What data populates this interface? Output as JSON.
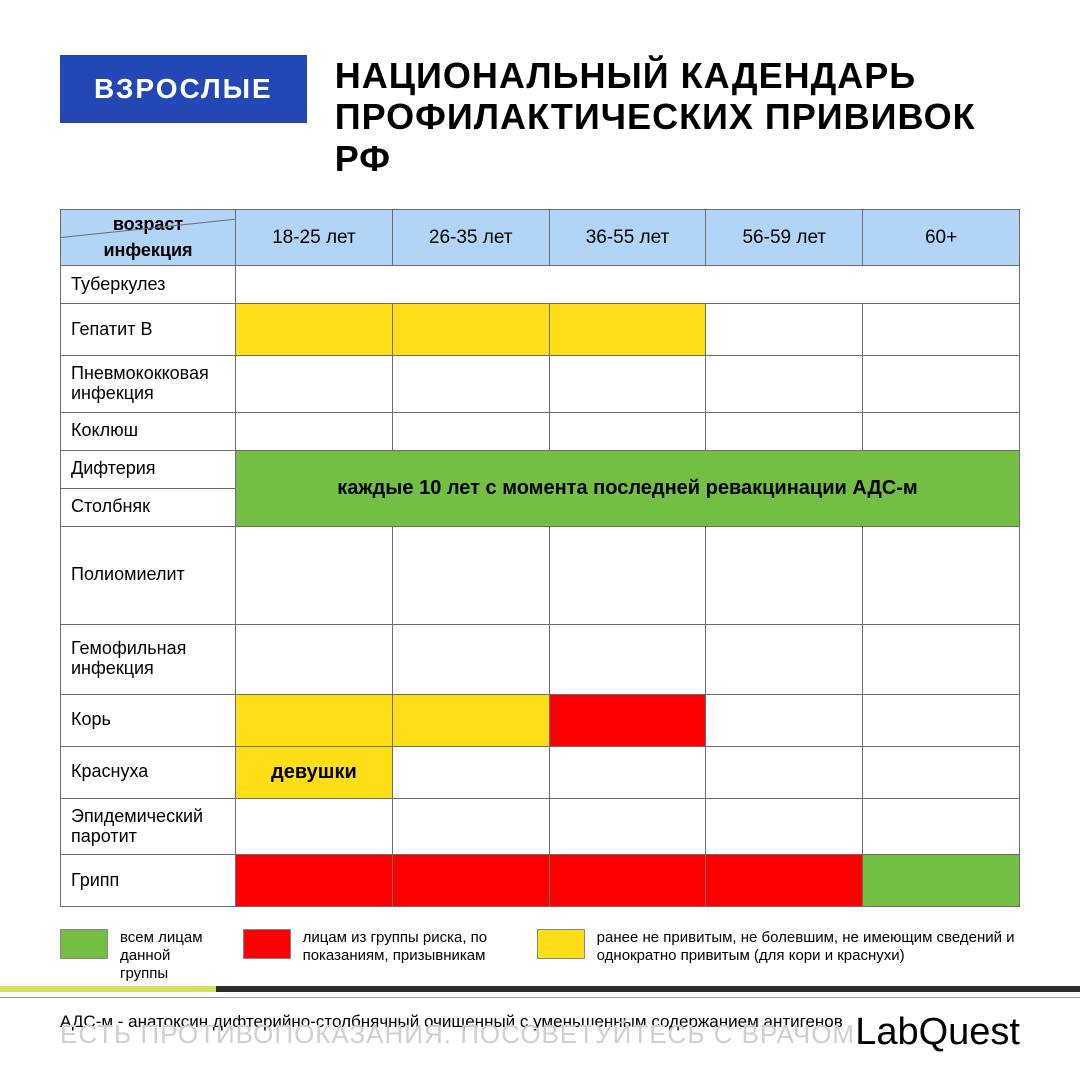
{
  "colors": {
    "badge_bg": "#2348b5",
    "header_bg": "#b1d4f7",
    "green": "#72bf44",
    "red": "#ff0000",
    "yellow": "#ffde17",
    "accent_dark": "#2c2c2c",
    "accent_lime": "#d5e05b"
  },
  "badge": "ВЗРОСЛЫЕ",
  "title_line1": "НАЦИОНАЛЬНЫЙ КАДЕНДАРЬ",
  "title_line2": "ПРОФИЛАКТИЧЕСКИХ ПРИВИВОК РФ",
  "corner_top": "возраст",
  "corner_bot": "инфекция",
  "ages": [
    "18-25 лет",
    "26-35 лет",
    "36-55 лет",
    "56-59 лет",
    "60+"
  ],
  "rows": [
    {
      "label": "Туберкулез",
      "h": "h-short",
      "cells": [
        {
          "span": 5,
          "color": null
        }
      ]
    },
    {
      "label": "Гепатит B",
      "h": "h-med",
      "cells": [
        {
          "span": 1,
          "color": "yellow"
        },
        {
          "span": 1,
          "color": "yellow"
        },
        {
          "span": 1,
          "color": "yellow"
        },
        {
          "span": 1,
          "color": null
        },
        {
          "span": 1,
          "color": null
        }
      ]
    },
    {
      "label": "Пневмококковая инфекция",
      "h": "h-med",
      "cells": [
        {
          "span": 1,
          "color": null
        },
        {
          "span": 1,
          "color": null
        },
        {
          "span": 1,
          "color": null
        },
        {
          "span": 1,
          "color": null
        },
        {
          "span": 1,
          "color": null
        }
      ]
    },
    {
      "label": "Коклюш",
      "h": "h-short",
      "cells": [
        {
          "span": 1,
          "color": null
        },
        {
          "span": 1,
          "color": null
        },
        {
          "span": 1,
          "color": null
        },
        {
          "span": 1,
          "color": null
        },
        {
          "span": 1,
          "color": null
        }
      ]
    },
    {
      "label": "Дифтерия",
      "h": "h-short",
      "merge_down": true
    },
    {
      "label": "Столбняк",
      "h": "h-short"
    },
    {
      "label": "Полиомиелит",
      "h": "h-tall",
      "cells": [
        {
          "span": 1,
          "color": null
        },
        {
          "span": 1,
          "color": null
        },
        {
          "span": 1,
          "color": null
        },
        {
          "span": 1,
          "color": null
        },
        {
          "span": 1,
          "color": null
        }
      ]
    },
    {
      "label": "Гемофильная инфекция",
      "h": "h-mid",
      "cells": [
        {
          "span": 1,
          "color": null
        },
        {
          "span": 1,
          "color": null
        },
        {
          "span": 1,
          "color": null
        },
        {
          "span": 1,
          "color": null
        },
        {
          "span": 1,
          "color": null
        }
      ]
    },
    {
      "label": "Корь",
      "h": "h-med",
      "cells": [
        {
          "span": 1,
          "color": "yellow"
        },
        {
          "span": 1,
          "color": "yellow"
        },
        {
          "span": 1,
          "color": "red"
        },
        {
          "span": 1,
          "color": null
        },
        {
          "span": 1,
          "color": null
        }
      ]
    },
    {
      "label": "Краснуха",
      "h": "h-med",
      "cells": [
        {
          "span": 1,
          "color": "yellow",
          "text": "девушки"
        },
        {
          "span": 1,
          "color": null
        },
        {
          "span": 1,
          "color": null
        },
        {
          "span": 1,
          "color": null
        },
        {
          "span": 1,
          "color": null
        }
      ]
    },
    {
      "label": "Эпидемический паротит",
      "h": "h-med",
      "cells": [
        {
          "span": 1,
          "color": null
        },
        {
          "span": 1,
          "color": null
        },
        {
          "span": 1,
          "color": null
        },
        {
          "span": 1,
          "color": null
        },
        {
          "span": 1,
          "color": null
        }
      ]
    },
    {
      "label": "Грипп",
      "h": "h-med",
      "cells": [
        {
          "span": 1,
          "color": "red"
        },
        {
          "span": 1,
          "color": "red"
        },
        {
          "span": 1,
          "color": "red"
        },
        {
          "span": 1,
          "color": "red"
        },
        {
          "span": 1,
          "color": "green"
        }
      ]
    }
  ],
  "merged_banner_text": "каждые 10 лет с момента последней ревакцинации АДС-м",
  "legend": [
    {
      "color": "green",
      "text": "всем лицам данной группы"
    },
    {
      "color": "red",
      "text": "лицам из группы риска, по показаниям, призывникам"
    },
    {
      "color": "yellow",
      "text": "ранее не привитым, не болевшим, не имеющим сведений и однократно привитым (для кори и краснухи)"
    }
  ],
  "footnote": "АДС-м - анатоксин дифтерийно-столбнячный очищенный с уменьшенным содержанием антигенов",
  "disclaimer": "ЕСТЬ ПРОТИВОПОКАЗАНИЯ. ПОСОВЕТУЙТЕСЬ С ВРАЧОМ.",
  "brand_1": "Lab",
  "brand_2": "Quest"
}
